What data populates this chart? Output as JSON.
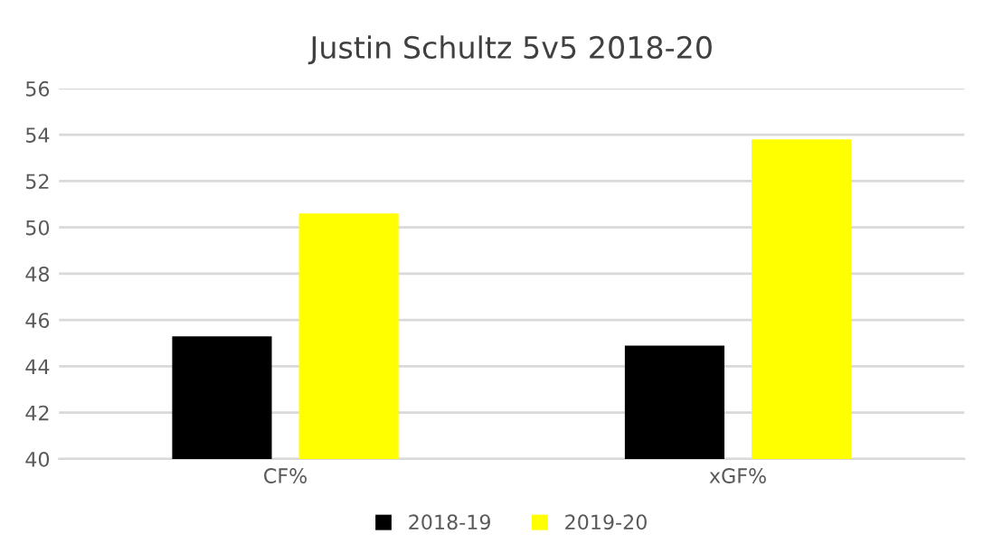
{
  "chart_data": {
    "type": "bar",
    "title": "Justin Schultz 5v5 2018-20",
    "categories": [
      "CF%",
      "xGF%"
    ],
    "series": [
      {
        "name": "2018-19",
        "color": "#000000",
        "values": [
          45.3,
          44.9
        ]
      },
      {
        "name": "2019-20",
        "color": "#ffff00",
        "values": [
          50.6,
          53.8
        ]
      }
    ],
    "ylim": [
      40,
      56
    ],
    "yticks": [
      40,
      42,
      44,
      46,
      48,
      50,
      52,
      54,
      56
    ],
    "grid": "y",
    "legend": "bottom"
  }
}
